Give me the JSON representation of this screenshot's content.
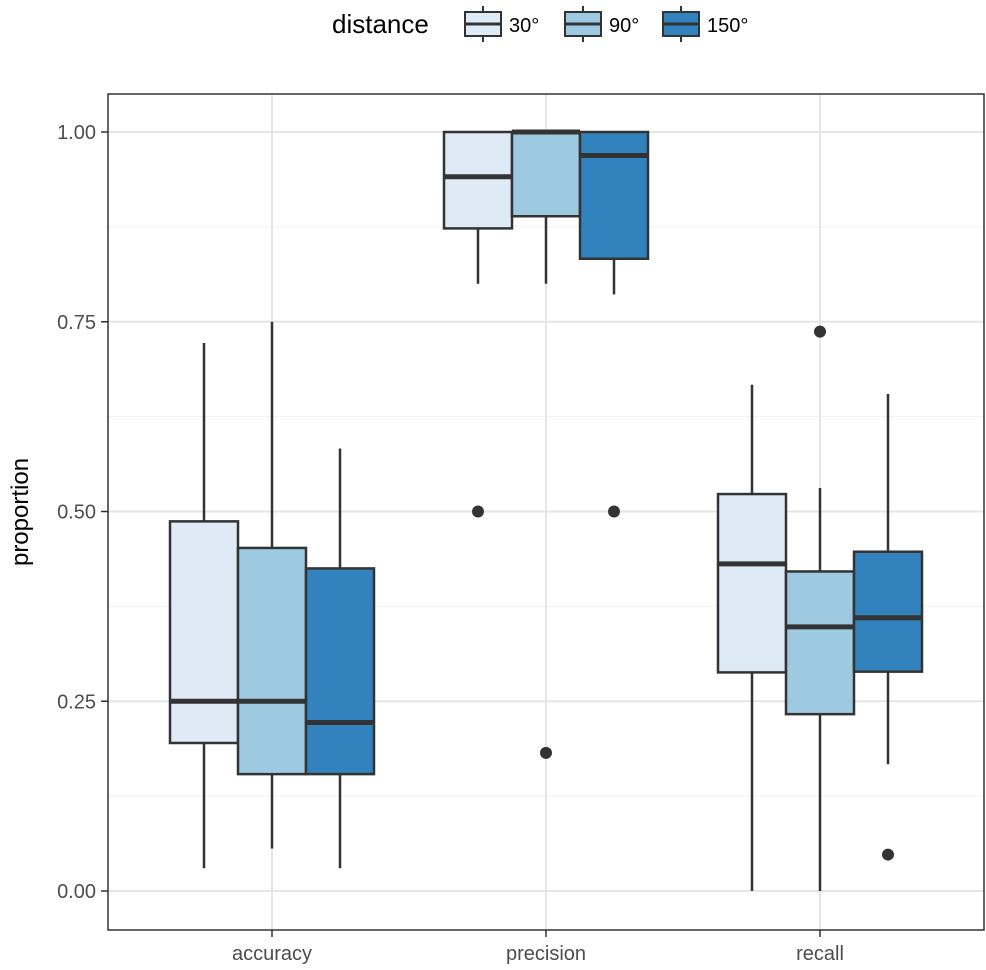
{
  "chart_data": {
    "type": "boxplot",
    "title": "",
    "xlabel": "",
    "ylabel": "proportion",
    "ylim": [
      -0.05,
      1.05
    ],
    "yticks": [
      0.0,
      0.25,
      0.5,
      0.75,
      1.0
    ],
    "ytick_labels": [
      "0.00",
      "0.25",
      "0.50",
      "0.75",
      "1.00"
    ],
    "categories": [
      "accuracy",
      "precision",
      "recall"
    ],
    "grid": true,
    "legend": {
      "title": "distance",
      "position": "top",
      "entries": [
        "30°",
        "90°",
        "150°"
      ]
    },
    "series": [
      {
        "name": "30°",
        "color": "#deebf7",
        "boxes": [
          {
            "category": "accuracy",
            "whisker_low": 0.03,
            "q1": 0.195,
            "median": 0.25,
            "q3": 0.487,
            "whisker_high": 0.722,
            "outliers": []
          },
          {
            "category": "precision",
            "whisker_low": 0.8,
            "q1": 0.873,
            "median": 0.941,
            "q3": 1.0,
            "whisker_high": 1.0,
            "outliers": [
              0.5
            ]
          },
          {
            "category": "recall",
            "whisker_low": 0.0,
            "q1": 0.288,
            "median": 0.431,
            "q3": 0.523,
            "whisker_high": 0.667,
            "outliers": []
          }
        ]
      },
      {
        "name": "90°",
        "color": "#9ecae1",
        "boxes": [
          {
            "category": "accuracy",
            "whisker_low": 0.056,
            "q1": 0.154,
            "median": 0.25,
            "q3": 0.452,
            "whisker_high": 0.75,
            "outliers": []
          },
          {
            "category": "precision",
            "whisker_low": 0.8,
            "q1": 0.889,
            "median": 1.0,
            "q3": 1.0,
            "whisker_high": 1.0,
            "outliers": [
              0.182
            ]
          },
          {
            "category": "recall",
            "whisker_low": 0.0,
            "q1": 0.233,
            "median": 0.348,
            "q3": 0.421,
            "whisker_high": 0.531,
            "outliers": [
              0.737
            ]
          }
        ]
      },
      {
        "name": "150°",
        "color": "#3182bd",
        "boxes": [
          {
            "category": "accuracy",
            "whisker_low": 0.03,
            "q1": 0.154,
            "median": 0.222,
            "q3": 0.425,
            "whisker_high": 0.583,
            "outliers": []
          },
          {
            "category": "precision",
            "whisker_low": 0.786,
            "q1": 0.833,
            "median": 0.969,
            "q3": 1.0,
            "whisker_high": 1.0,
            "outliers": [
              0.5
            ]
          },
          {
            "category": "recall",
            "whisker_low": 0.167,
            "q1": 0.289,
            "median": 0.36,
            "q3": 0.447,
            "whisker_high": 0.655,
            "outliers": [
              0.048
            ]
          }
        ]
      }
    ]
  }
}
